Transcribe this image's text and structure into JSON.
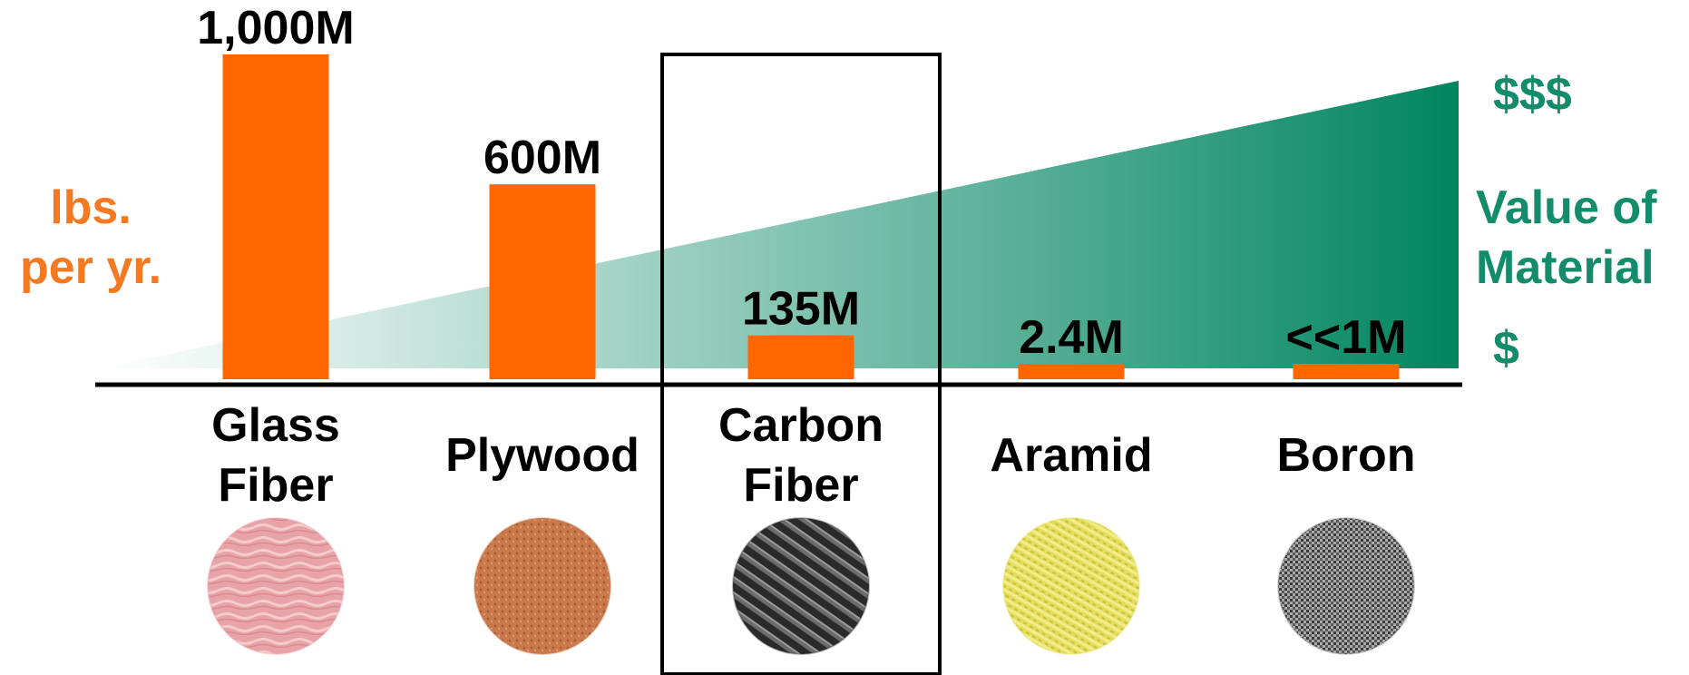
{
  "chart_data": {
    "type": "bar",
    "categories": [
      "Glass Fiber",
      "Plywood",
      "Carbon Fiber",
      "Aramid",
      "Boron"
    ],
    "category_lines": [
      [
        "Glass",
        "Fiber"
      ],
      [
        "Plywood"
      ],
      [
        "Carbon",
        "Fiber"
      ],
      [
        "Aramid"
      ],
      [
        "Boron"
      ]
    ],
    "values": [
      1000,
      600,
      135,
      2.4,
      1
    ],
    "data_labels": [
      "1,000M",
      "600M",
      "135M",
      "2.4M",
      "<<1M"
    ],
    "highlighted_category": "Carbon Fiber",
    "ylim": [
      0,
      1000
    ],
    "grid": false,
    "y_axis_title": [
      "lbs.",
      "per yr."
    ],
    "secondary_axis": {
      "title": [
        "Value of",
        "Material"
      ],
      "high_label": "$$$",
      "low_label": "$",
      "direction": "increasing left to right"
    },
    "swatches": [
      "glass-fiber-swatch",
      "plywood-swatch",
      "carbon-fiber-swatch",
      "aramid-swatch",
      "boron-swatch"
    ]
  },
  "colors": {
    "bar": "#FF6600",
    "ylabel": "#F47920",
    "value_wedge_dark": "#00855F",
    "value_text": "#128C6A",
    "text": "#000000",
    "swatch_glass": "#E7A3A7",
    "swatch_plywood": "#C9794C",
    "swatch_carbon": "#333333",
    "swatch_aramid": "#E3DD5B",
    "swatch_boron": "#8A8A8A"
  }
}
